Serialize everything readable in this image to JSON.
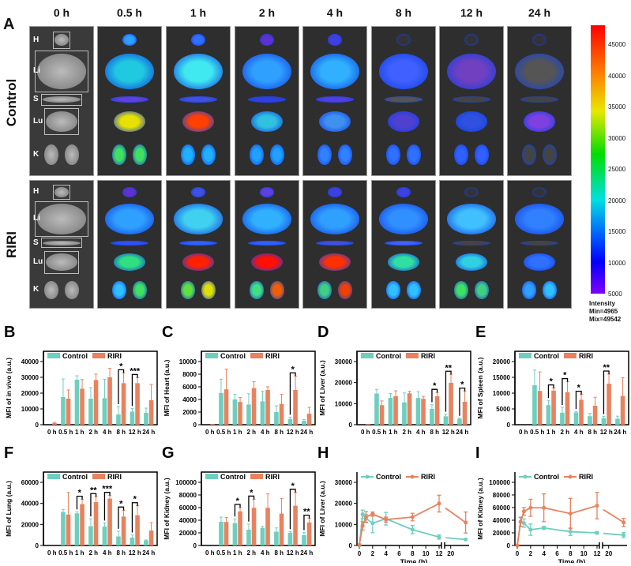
{
  "panel_a": {
    "letter": "A",
    "time_labels": [
      "0 h",
      "0.5 h",
      "1 h",
      "2 h",
      "4 h",
      "8 h",
      "12 h",
      "24 h"
    ],
    "row_labels": [
      "Control",
      "RIRI"
    ],
    "organ_labels": [
      "H",
      "Li",
      "S",
      "Lu",
      "K"
    ],
    "colorbar": {
      "ticks": [
        "45000",
        "40000",
        "35000",
        "30000",
        "25000",
        "20000",
        "15000",
        "10000",
        "5000"
      ],
      "title": "Intensity",
      "min": "Min=4965",
      "max": "Mix=49542"
    }
  },
  "colors": {
    "control": "#6dcfbf",
    "riri": "#e8825f"
  },
  "chart_data": [
    {
      "panel": "B",
      "type": "bar",
      "ylabel": "MFI of in vivo (a.u.)",
      "ylim": [
        0,
        45000
      ],
      "yticks": [
        0,
        10000,
        20000,
        30000,
        40000
      ],
      "categories": [
        "0 h",
        "0.5 h",
        "1 h",
        "2 h",
        "4 h",
        "8 h",
        "12 h",
        "24 h"
      ],
      "series": [
        {
          "name": "Control",
          "values": [
            0,
            17500,
            28500,
            16500,
            16800,
            6500,
            8300,
            7500
          ],
          "errors": [
            0,
            11500,
            2500,
            7000,
            12000,
            5000,
            2000,
            3000
          ]
        },
        {
          "name": "RIRI",
          "values": [
            1000,
            16500,
            22800,
            28300,
            30000,
            26300,
            26300,
            15500
          ],
          "errors": [
            500,
            5500,
            5800,
            3800,
            5700,
            6500,
            3500,
            10000
          ]
        }
      ],
      "significance": [
        {
          "category": "8 h",
          "label": "*"
        },
        {
          "category": "12 h",
          "label": "***"
        }
      ]
    },
    {
      "panel": "C",
      "type": "bar",
      "ylabel": "MFI of Heart (a.u.)",
      "ylim": [
        0,
        10000
      ],
      "yticks": [
        0,
        2000,
        4000,
        6000,
        8000,
        10000
      ],
      "categories": [
        "0 h",
        "0.5 h",
        "1 h",
        "2 h",
        "4 h",
        "8 h",
        "12 h",
        "24 h"
      ],
      "series": [
        {
          "name": "Control",
          "values": [
            0,
            5000,
            4000,
            3200,
            3700,
            2000,
            900,
            600
          ],
          "errors": [
            0,
            2200,
            800,
            1700,
            1600,
            1000,
            300,
            200
          ]
        },
        {
          "name": "RIRI",
          "values": [
            100,
            5600,
            3600,
            5800,
            5500,
            3300,
            5500,
            1750
          ],
          "errors": [
            0,
            3200,
            700,
            1000,
            500,
            1500,
            2200,
            1000
          ]
        }
      ],
      "significance": [
        {
          "category": "12 h",
          "label": "*"
        }
      ]
    },
    {
      "panel": "D",
      "type": "bar",
      "ylabel": "MFI of Liver (a.u.)",
      "ylim": [
        0,
        30000
      ],
      "yticks": [
        0,
        10000,
        20000,
        30000
      ],
      "categories": [
        "0 h",
        "0.5 h",
        "1 h",
        "2 h",
        "4 h",
        "8 h",
        "12 h",
        "24 h"
      ],
      "series": [
        {
          "name": "Control",
          "values": [
            0,
            14800,
            12800,
            10600,
            12700,
            7500,
            4000,
            2800
          ],
          "errors": [
            0,
            2000,
            2000,
            4500,
            3000,
            2000,
            1000,
            300
          ]
        },
        {
          "name": "RIRI",
          "values": [
            300,
            9300,
            13600,
            14900,
            12300,
            13500,
            19900,
            10900
          ],
          "errors": [
            0,
            2000,
            2500,
            1000,
            1200,
            1800,
            4000,
            5000
          ]
        }
      ],
      "significance": [
        {
          "category": "8 h",
          "label": "*"
        },
        {
          "category": "12 h",
          "label": "**"
        },
        {
          "category": "24 h",
          "label": "*"
        }
      ]
    },
    {
      "panel": "E",
      "type": "bar",
      "ylabel": "MFI of Spleen (a.u.)",
      "ylim": [
        0,
        20000
      ],
      "yticks": [
        0,
        5000,
        10000,
        15000,
        20000
      ],
      "categories": [
        "0 h",
        "0.5 h",
        "1 h",
        "2 h",
        "4 h",
        "8 h",
        "12 h",
        "24 h"
      ],
      "series": [
        {
          "name": "Control",
          "values": [
            0,
            12500,
            6200,
            3800,
            3900,
            2700,
            2100,
            1900
          ],
          "errors": [
            0,
            4800,
            1500,
            1700,
            300,
            900,
            500,
            800
          ]
        },
        {
          "name": "RIRI",
          "values": [
            0,
            10700,
            10800,
            10300,
            7900,
            6000,
            13000,
            9100
          ],
          "errors": [
            0,
            6000,
            800,
            3300,
            1700,
            2700,
            3000,
            5800
          ]
        }
      ],
      "significance": [
        {
          "category": "1 h",
          "label": "*"
        },
        {
          "category": "2 h",
          "label": "*"
        },
        {
          "category": "4 h",
          "label": "*"
        },
        {
          "category": "12 h",
          "label": "**"
        }
      ]
    },
    {
      "panel": "F",
      "type": "bar",
      "ylabel": "MFI of Lung (a.u.)",
      "ylim": [
        0,
        60000
      ],
      "yticks": [
        0,
        20000,
        40000,
        60000
      ],
      "categories": [
        "0 h",
        "0.5 h",
        "1 h",
        "2 h",
        "4 h",
        "8 h",
        "12 h",
        "24 h"
      ],
      "series": [
        {
          "name": "Control",
          "values": [
            0,
            31800,
            30500,
            18300,
            18000,
            8600,
            7500,
            4800
          ],
          "errors": [
            0,
            2500,
            1500,
            7000,
            3500,
            5000,
            2500,
            500
          ]
        },
        {
          "name": "RIRI",
          "values": [
            0,
            29400,
            39300,
            41300,
            44500,
            27500,
            28700,
            14200
          ],
          "errors": [
            0,
            21000,
            4500,
            5000,
            3000,
            6000,
            9000,
            7500
          ]
        }
      ],
      "significance": [
        {
          "category": "1 h",
          "label": "*"
        },
        {
          "category": "2 h",
          "label": "**"
        },
        {
          "category": "4 h",
          "label": "***"
        },
        {
          "category": "8 h",
          "label": "*"
        },
        {
          "category": "12 h",
          "label": "*"
        }
      ]
    },
    {
      "panel": "G",
      "type": "bar",
      "ylabel": "MFI of Kidney (a.u.)",
      "ylim": [
        0,
        100000
      ],
      "yticks": [
        0,
        20000,
        40000,
        60000,
        80000,
        100000
      ],
      "categories": [
        "0 h",
        "0.5 h",
        "1 h",
        "2 h",
        "4 h",
        "8 h",
        "12 h",
        "24 h"
      ],
      "series": [
        {
          "name": "Control",
          "values": [
            0,
            37500,
            35500,
            25000,
            27800,
            21800,
            20000,
            16500
          ],
          "errors": [
            0,
            7500,
            6500,
            9000,
            2500,
            6000,
            2000,
            4000
          ]
        },
        {
          "name": "RIRI",
          "values": [
            0,
            37300,
            54000,
            59700,
            59700,
            50500,
            63000,
            36500
          ],
          "errors": [
            0,
            7000,
            6000,
            13500,
            22000,
            24000,
            21000,
            6500
          ]
        }
      ],
      "significance": [
        {
          "category": "1 h",
          "label": "*"
        },
        {
          "category": "2 h",
          "label": "*"
        },
        {
          "category": "12 h",
          "label": "*"
        },
        {
          "category": "24 h",
          "label": "**"
        }
      ]
    },
    {
      "panel": "H",
      "type": "line",
      "ylabel": "MFI of Liver (a.u.)",
      "xlabel": "Time (h)",
      "ylim": [
        0,
        30000
      ],
      "yticks": [
        0,
        10000,
        20000,
        30000
      ],
      "xticks": [
        "0",
        "2",
        "4",
        "6",
        "8",
        "10",
        "12",
        "20"
      ],
      "x": [
        0,
        0.5,
        1,
        2,
        4,
        8,
        12,
        24
      ],
      "series": [
        {
          "name": "Control",
          "values": [
            0,
            14800,
            12800,
            10600,
            12700,
            7500,
            4000,
            2800
          ],
          "errors": [
            0,
            2000,
            2000,
            4500,
            3000,
            2000,
            1000,
            300
          ]
        },
        {
          "name": "RIRI",
          "values": [
            300,
            9300,
            13600,
            14900,
            12300,
            13500,
            19900,
            10900
          ],
          "errors": [
            0,
            2000,
            2500,
            1000,
            1200,
            1800,
            4000,
            5000
          ]
        }
      ]
    },
    {
      "panel": "I",
      "type": "line",
      "ylabel": "MFI of Kidney (a.u.)",
      "xlabel": "Time (h)",
      "ylim": [
        0,
        100000
      ],
      "yticks": [
        0,
        20000,
        40000,
        60000,
        80000,
        100000
      ],
      "xticks": [
        "0",
        "2",
        "4",
        "6",
        "8",
        "10",
        "12",
        "20"
      ],
      "x": [
        0,
        0.5,
        1,
        2,
        4,
        8,
        12,
        24
      ],
      "series": [
        {
          "name": "Control",
          "values": [
            0,
            37500,
            35500,
            25000,
            27800,
            21800,
            20000,
            16500
          ],
          "errors": [
            0,
            7500,
            6500,
            9000,
            2500,
            6000,
            2000,
            4000
          ]
        },
        {
          "name": "RIRI",
          "values": [
            0,
            37300,
            54000,
            59700,
            59700,
            50500,
            63000,
            36500
          ],
          "errors": [
            0,
            7000,
            6000,
            13500,
            22000,
            24000,
            21000,
            6500
          ]
        }
      ]
    }
  ]
}
